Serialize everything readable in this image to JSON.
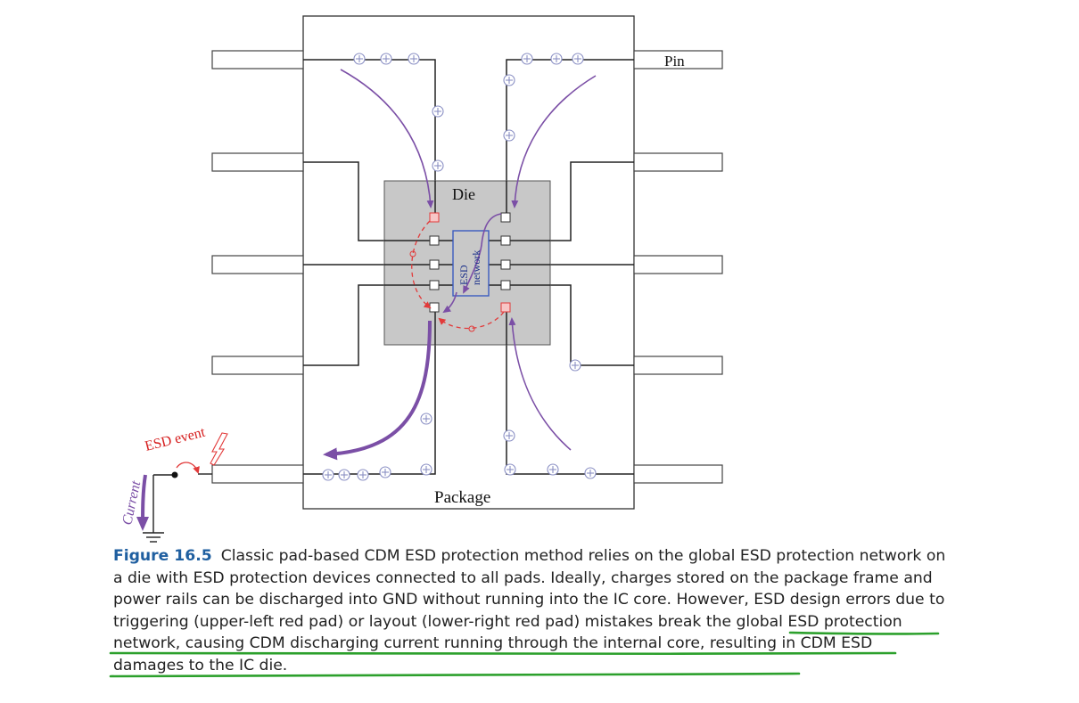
{
  "figure": {
    "labels": {
      "pin": "Pin",
      "die": "Die",
      "package": "Package",
      "esd_network": "ESD network",
      "esd_event": "ESD event",
      "current": "Current"
    }
  },
  "caption": {
    "label": "Figure 16.5",
    "text_start": "Classic pad-based CDM ESD protection method relies on the global ESD protection network on a die with ESD protection devices connected to all pads. Ideally, charges stored on the package frame and power rails can be discharged into GND without running into the IC core. However,",
    "text_highlight": "ESD design errors due to triggering (upper-left red pad) or layout (lower-right red pad) mistakes break the global ESD protection network, causing CDM discharging current running through the internal core,",
    "text_end": "resulting in CDM ESD damages to the IC die."
  },
  "colors": {
    "caption_label": "#1f5fa0",
    "underline": "#2ca02c",
    "arrow_purple": "#7b4fa6",
    "red_path": "#e23a3a",
    "die_fill": "#c8c8c8",
    "esd_box": "#3b5bbf"
  }
}
